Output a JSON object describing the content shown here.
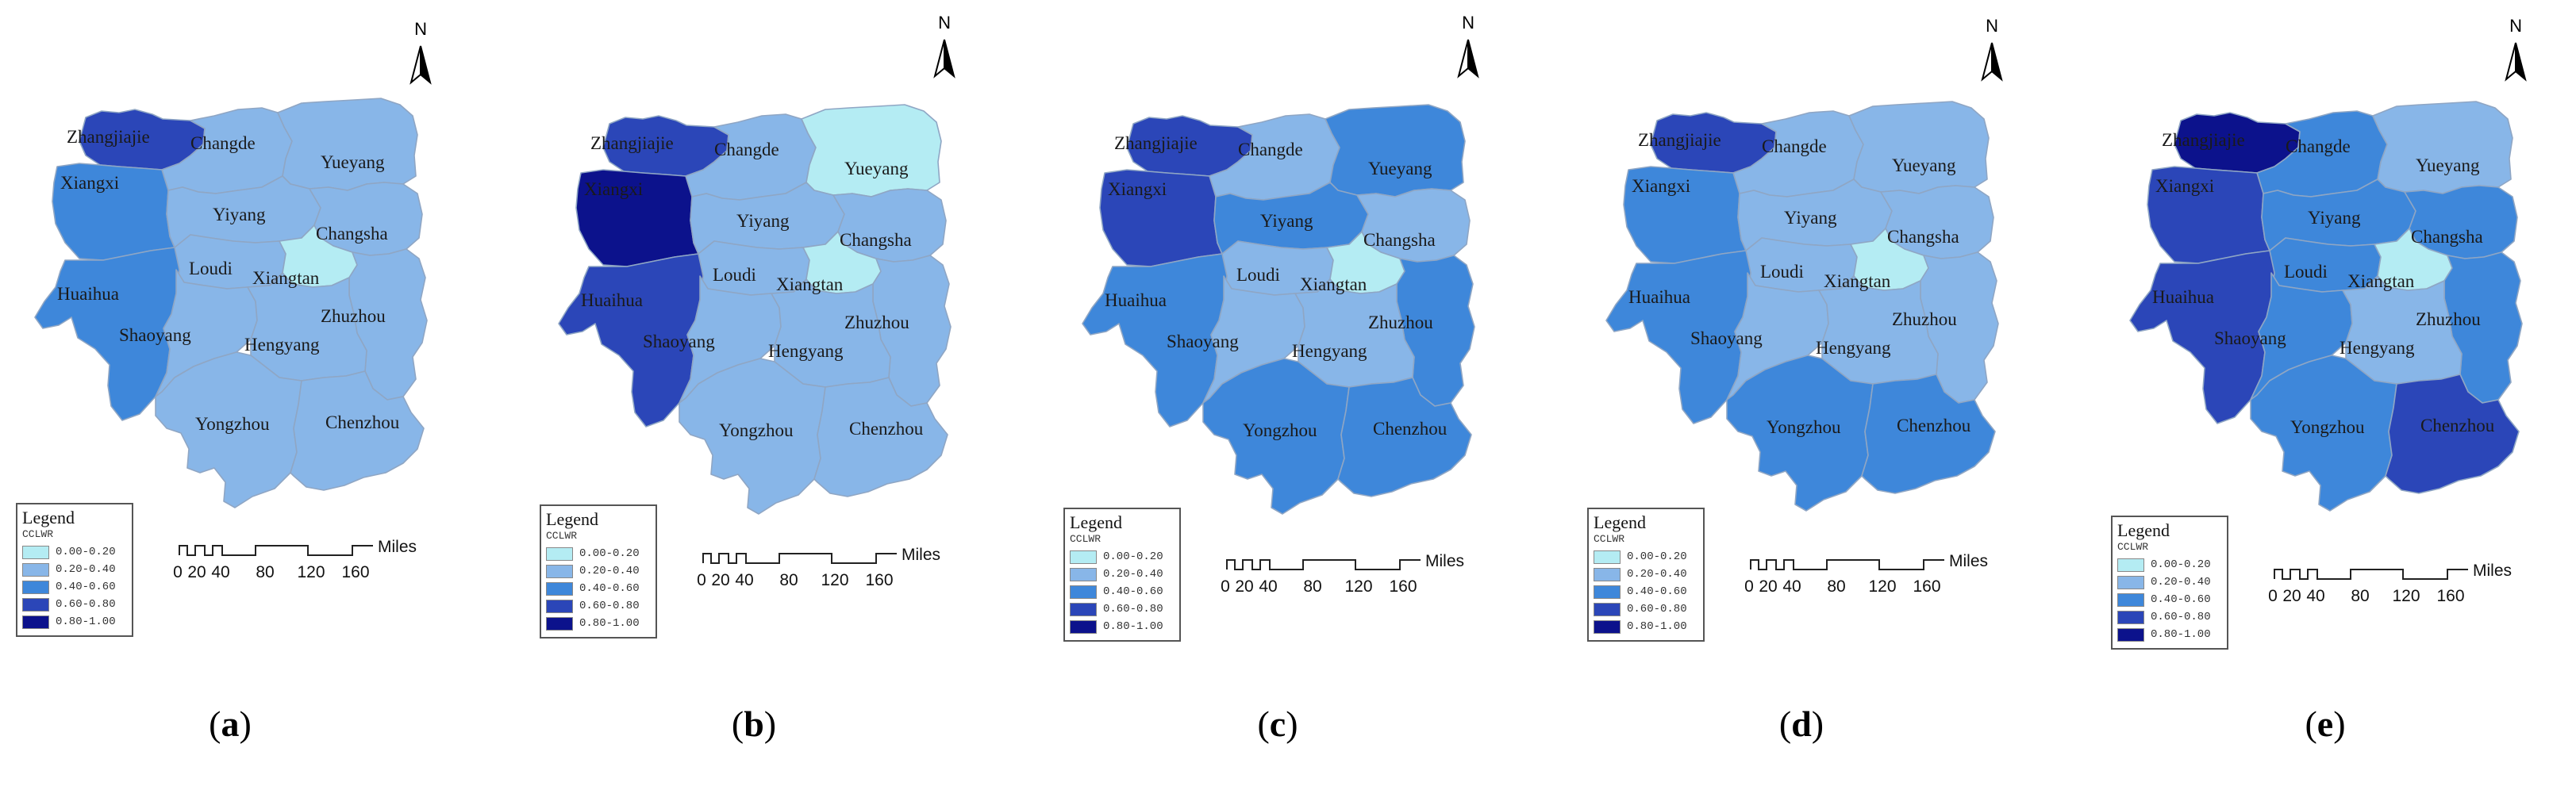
{
  "legend": {
    "title": "Legend",
    "field": "CCLWR",
    "classes": [
      {
        "label": "0.00-0.20",
        "color": "#b4ecf3"
      },
      {
        "label": "0.20-0.40",
        "color": "#88b6e8"
      },
      {
        "label": "0.40-0.60",
        "color": "#3e87da"
      },
      {
        "label": "0.60-0.80",
        "color": "#2b46b8"
      },
      {
        "label": "0.80-1.00",
        "color": "#0c128c"
      }
    ]
  },
  "scale_bar": {
    "ticks": [
      "0",
      "20",
      "40",
      "80",
      "120",
      "160"
    ],
    "unit": "Miles"
  },
  "north_label": "N",
  "regions": [
    "Zhangjiajie",
    "Changde",
    "Yueyang",
    "Xiangxi",
    "Yiyang",
    "Changsha",
    "Loudi",
    "Xiangtan",
    "Huaihua",
    "Zhuzhou",
    "Shaoyang",
    "Hengyang",
    "Yongzhou",
    "Chenzhou"
  ],
  "panels": [
    {
      "caption": "a",
      "classes": {
        "Zhangjiajie": 3,
        "Xiangxi": 2,
        "Huaihua": 2,
        "Xiangtan": 0,
        "Changde": 1,
        "Yueyang": 1,
        "Yiyang": 1,
        "Changsha": 1,
        "Loudi": 1,
        "Zhuzhou": 1,
        "Shaoyang": 1,
        "Hengyang": 1,
        "Yongzhou": 1,
        "Chenzhou": 1
      }
    },
    {
      "caption": "b",
      "classes": {
        "Zhangjiajie": 3,
        "Xiangxi": 4,
        "Huaihua": 3,
        "Yueyang": 0,
        "Xiangtan": 0,
        "Changde": 1,
        "Yiyang": 1,
        "Changsha": 1,
        "Loudi": 1,
        "Zhuzhou": 1,
        "Shaoyang": 1,
        "Hengyang": 1,
        "Yongzhou": 1,
        "Chenzhou": 1
      }
    },
    {
      "caption": "c",
      "classes": {
        "Zhangjiajie": 3,
        "Xiangxi": 3,
        "Huaihua": 2,
        "Changde": 1,
        "Yueyang": 2,
        "Yiyang": 2,
        "Changsha": 1,
        "Loudi": 1,
        "Xiangtan": 0,
        "Zhuzhou": 2,
        "Shaoyang": 1,
        "Hengyang": 1,
        "Yongzhou": 2,
        "Chenzhou": 2
      }
    },
    {
      "caption": "d",
      "classes": {
        "Zhangjiajie": 3,
        "Xiangxi": 2,
        "Huaihua": 2,
        "Changde": 1,
        "Yueyang": 1,
        "Yiyang": 1,
        "Changsha": 1,
        "Loudi": 1,
        "Xiangtan": 0,
        "Zhuzhou": 1,
        "Shaoyang": 1,
        "Hengyang": 1,
        "Yongzhou": 2,
        "Chenzhou": 2
      }
    },
    {
      "caption": "e",
      "classes": {
        "Zhangjiajie": 4,
        "Xiangxi": 3,
        "Huaihua": 3,
        "Changde": 2,
        "Yueyang": 1,
        "Yiyang": 2,
        "Changsha": 2,
        "Loudi": 2,
        "Xiangtan": 0,
        "Zhuzhou": 2,
        "Shaoyang": 2,
        "Hengyang": 1,
        "Yongzhou": 2,
        "Chenzhou": 3
      }
    }
  ]
}
